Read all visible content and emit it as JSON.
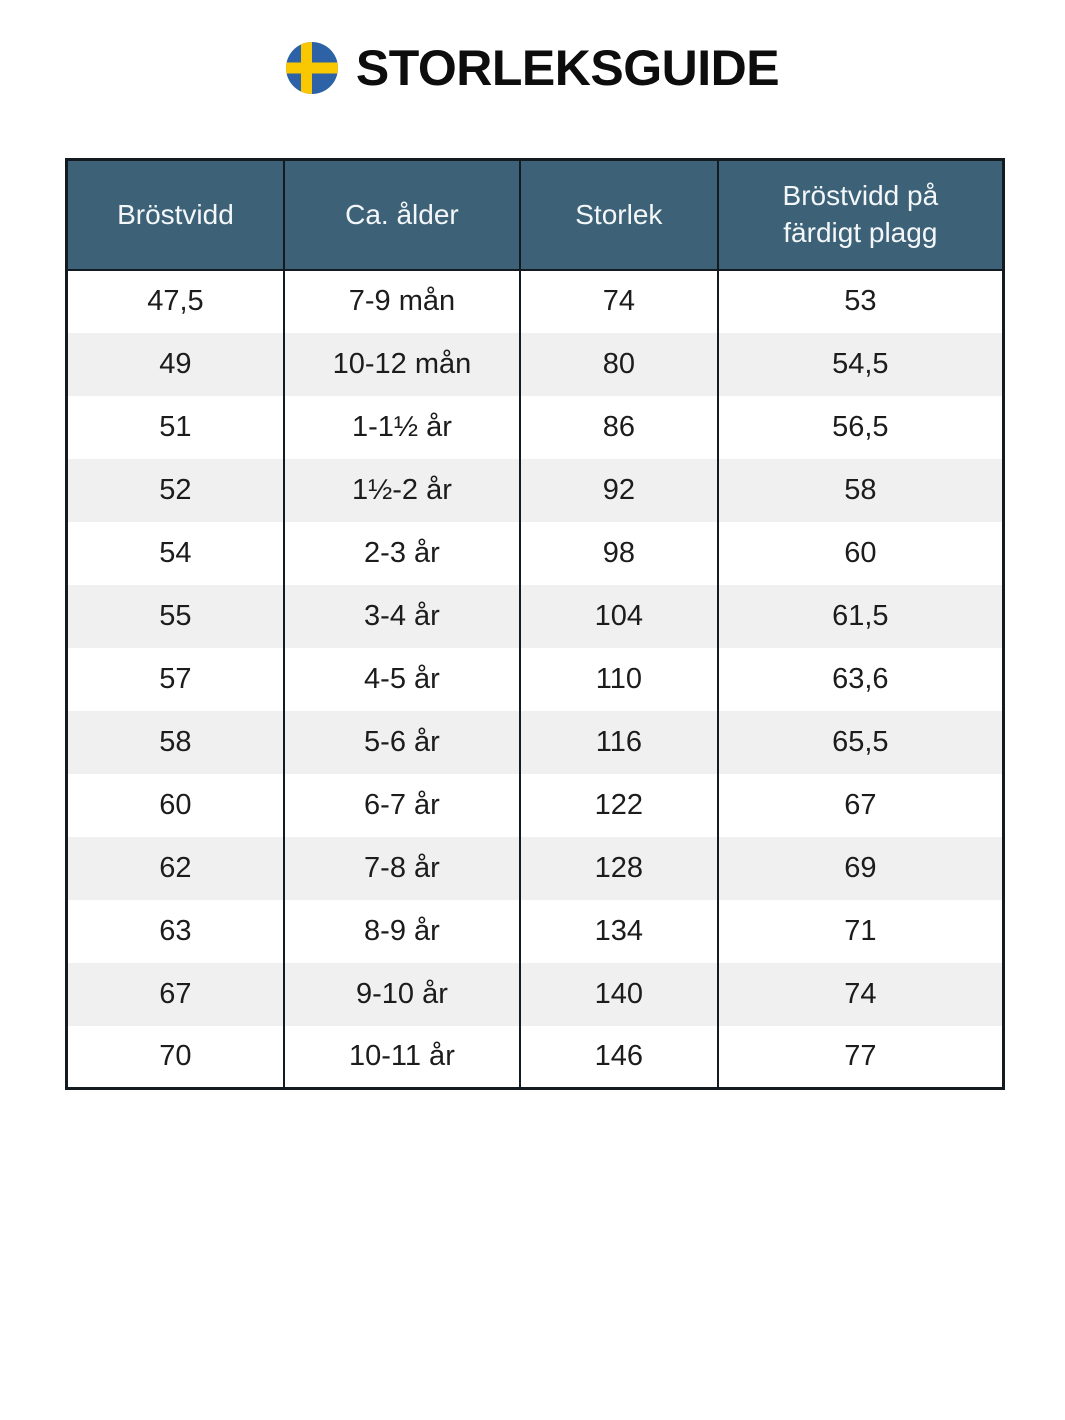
{
  "header": {
    "title": "STORLEKSGUIDE",
    "flag_icon": "swedish-flag"
  },
  "chart_data": {
    "type": "table",
    "title": "STORLEKSGUIDE",
    "columns": [
      "Bröstvidd",
      "Ca. ålder",
      "Storlek",
      "Bröstvidd på färdigt plagg"
    ],
    "rows": [
      [
        "47,5",
        "7-9 mån",
        "74",
        "53"
      ],
      [
        "49",
        "10-12 mån",
        "80",
        "54,5"
      ],
      [
        "51",
        "1-1½ år",
        "86",
        "56,5"
      ],
      [
        "52",
        "1½-2 år",
        "92",
        "58"
      ],
      [
        "54",
        "2-3 år",
        "98",
        "60"
      ],
      [
        "55",
        "3-4 år",
        "104",
        "61,5"
      ],
      [
        "57",
        "4-5 år",
        "110",
        "63,6"
      ],
      [
        "58",
        "5-6 år",
        "116",
        "65,5"
      ],
      [
        "60",
        "6-7 år",
        "122",
        "67"
      ],
      [
        "62",
        "7-8 år",
        "128",
        "69"
      ],
      [
        "63",
        "8-9 år",
        "134",
        "71"
      ],
      [
        "67",
        "9-10 år",
        "140",
        "74"
      ],
      [
        "70",
        "10-11 år",
        "146",
        "77"
      ]
    ]
  },
  "style": {
    "header_bg": "#3d6278",
    "header_text": "#f4f7f9",
    "row_bg": "#ffffff",
    "row_alt_bg": "#f0f0f0",
    "border_color": "#131a20",
    "body_text": "#1c1c1c",
    "title_color": "#0d0d0d",
    "flag_blue": "#2d62a7",
    "flag_yellow": "#f9c802"
  }
}
